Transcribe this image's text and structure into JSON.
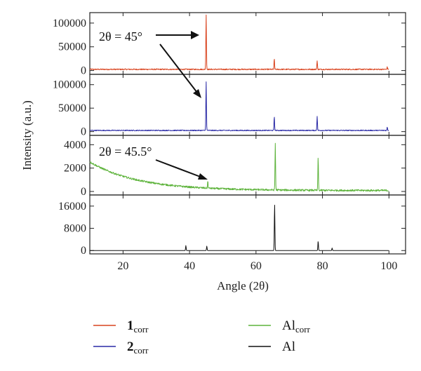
{
  "chart_data": {
    "type": "line",
    "xlabel": "Angle (2θ)",
    "ylabel": "Intensity (a.u.)",
    "xlim": [
      10,
      105
    ],
    "x_ticks": [
      20,
      40,
      60,
      80,
      100
    ],
    "grid": false,
    "legend_position": "bottom",
    "panels": [
      {
        "series": "1corr",
        "color": "#d9431e",
        "ylim": [
          -8000,
          122000
        ],
        "y_ticks": [
          0,
          50000,
          100000
        ],
        "y_tick_labels": [
          "0",
          "50000",
          "100000"
        ],
        "baseline": 2500,
        "noise": 1200,
        "x_range": [
          10,
          100
        ],
        "peaks": [
          {
            "x": 45.0,
            "y": 116000
          },
          {
            "x": 65.5,
            "y": 22000
          },
          {
            "x": 78.4,
            "y": 18000
          },
          {
            "x": 99.5,
            "y": 5000
          }
        ]
      },
      {
        "series": "2corr",
        "color": "#2a2aa6",
        "ylim": [
          -8000,
          122000
        ],
        "y_ticks": [
          0,
          50000,
          100000
        ],
        "y_tick_labels": [
          "0",
          "50000",
          "100000"
        ],
        "baseline": 2500,
        "noise": 1000,
        "x_range": [
          10,
          100
        ],
        "peaks": [
          {
            "x": 45.0,
            "y": 104000
          },
          {
            "x": 65.5,
            "y": 30000
          },
          {
            "x": 78.4,
            "y": 30000
          },
          {
            "x": 99.5,
            "y": 7000
          }
        ]
      },
      {
        "series": "Alcorr",
        "color": "#5db33b",
        "ylim": [
          -300,
          4800
        ],
        "y_ticks": [
          0,
          2000,
          4000
        ],
        "y_tick_labels": [
          "0",
          "2000",
          "4000"
        ],
        "baseline": 80,
        "noise": 80,
        "decay": {
          "amplitude": 2450,
          "start": 10,
          "rate": 0.07
        },
        "x_range": [
          10,
          100
        ],
        "peaks": [
          {
            "x": 45.5,
            "y": 600
          },
          {
            "x": 65.8,
            "y": 4000
          },
          {
            "x": 78.7,
            "y": 2850
          }
        ]
      },
      {
        "series": "Al",
        "color": "#111111",
        "ylim": [
          -1200,
          20000
        ],
        "y_ticks": [
          0,
          8000,
          16000
        ],
        "y_tick_labels": [
          "0",
          "8000",
          "16000"
        ],
        "baseline": 0,
        "noise": 0,
        "x_range": [
          10,
          100
        ],
        "peaks": [
          {
            "x": 38.9,
            "y": 1800
          },
          {
            "x": 45.2,
            "y": 1600
          },
          {
            "x": 65.6,
            "y": 16800
          },
          {
            "x": 78.7,
            "y": 3400
          },
          {
            "x": 82.9,
            "y": 900
          }
        ]
      }
    ],
    "annotations": [
      {
        "label": "2θ = 45°",
        "panel": 0
      },
      {
        "label": "2θ = 45.5°",
        "panel": 2
      }
    ],
    "legend": [
      {
        "main": "1",
        "sub": "corr",
        "color": "#d9431e",
        "bold": true
      },
      {
        "main": "Al",
        "sub": "corr",
        "color": "#5db33b",
        "bold": false
      },
      {
        "main": "2",
        "sub": "corr",
        "color": "#2a2aa6",
        "bold": true
      },
      {
        "main": "Al",
        "sub": "",
        "color": "#111111",
        "bold": false
      }
    ]
  }
}
